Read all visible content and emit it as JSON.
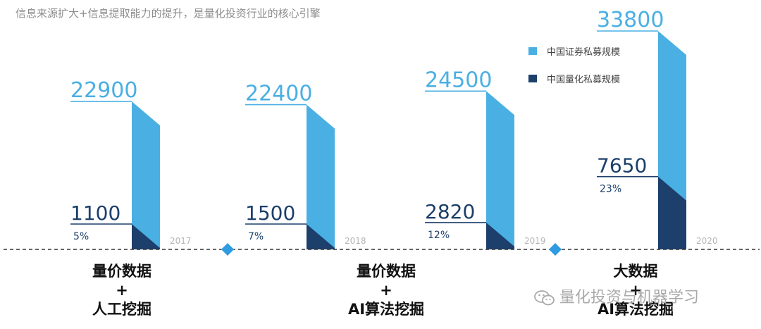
{
  "subtitle": "信息来源扩大+信息提取能力的提升，是量化投资行业的核心引擎",
  "chart_data": {
    "type": "bar",
    "categories": [
      "2017",
      "2018",
      "2019",
      "2020"
    ],
    "series": [
      {
        "name": "中国证券私募规模",
        "values": [
          22900,
          22400,
          24500,
          33800
        ]
      },
      {
        "name": "中国量化私募规模",
        "values": [
          1100,
          1500,
          2820,
          7650
        ]
      }
    ],
    "shares": [
      "5%",
      "7%",
      "12%",
      "23%"
    ],
    "colors": {
      "securities": "#4aafe3",
      "quant": "#1c3f6b",
      "marker": "#2f9be0",
      "axis": "#333333"
    },
    "legend_position": "top-right"
  },
  "stages": [
    [
      "量价数据",
      "+",
      "人工挖掘"
    ],
    [
      "量价数据",
      "+",
      "AI算法挖掘"
    ],
    [
      "大数据",
      "+",
      "AI算法挖掘"
    ]
  ],
  "watermark": {
    "text": "量化投资与机器学习",
    "icon": "wechat-icon"
  }
}
